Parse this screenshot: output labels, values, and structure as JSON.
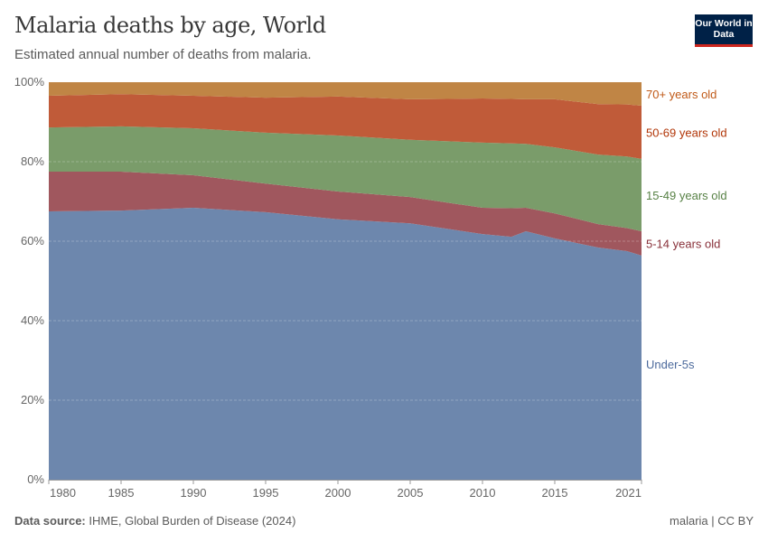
{
  "header": {
    "title": "Malaria deaths by age, World",
    "subtitle": "Estimated annual number of deaths from malaria.",
    "logo": "Our World in Data"
  },
  "footer": {
    "source_label": "Data source:",
    "source": "IHME, Global Burden of Disease (2024)",
    "license": "malaria | CC BY"
  },
  "chart_data": {
    "type": "area",
    "stacked": "percent",
    "title": "Malaria deaths by age, World",
    "xlabel": "",
    "ylabel": "",
    "ylim": [
      0,
      100
    ],
    "xlim": [
      1980,
      2021
    ],
    "x_ticks": [
      1980,
      1985,
      1990,
      1995,
      2000,
      2005,
      2010,
      2015,
      2021
    ],
    "y_ticks": [
      "0%",
      "20%",
      "40%",
      "60%",
      "80%",
      "100%"
    ],
    "grid": "horizontal dashed",
    "legend": "right, inline labels",
    "x": [
      1980,
      1985,
      1990,
      1995,
      2000,
      2005,
      2010,
      2012,
      2013,
      2015,
      2018,
      2020,
      2021
    ],
    "series": [
      {
        "name": "Under-5s",
        "color": "#6d87ad",
        "label_color": "#4c6a9c",
        "values": [
          67.5,
          67.7,
          68.4,
          67.3,
          65.5,
          64.5,
          61.8,
          61.1,
          62.5,
          60.7,
          58.4,
          57.5,
          56.4
        ]
      },
      {
        "name": "5-14 years old",
        "color": "#a0575e",
        "label_color": "#883039",
        "values": [
          10.0,
          9.8,
          8.2,
          7.2,
          7.0,
          6.6,
          6.6,
          7.2,
          5.9,
          6.3,
          5.9,
          5.8,
          6.1
        ]
      },
      {
        "name": "15-49 years old",
        "color": "#7a9c6a",
        "label_color": "#578145",
        "values": [
          11.1,
          11.4,
          11.8,
          12.8,
          14.1,
          14.4,
          16.4,
          16.3,
          16.1,
          16.6,
          17.5,
          18.0,
          18.2
        ]
      },
      {
        "name": "50-69 years old",
        "color": "#c05b39",
        "label_color": "#b13507",
        "values": [
          8.0,
          8.1,
          8.2,
          8.8,
          9.8,
          10.2,
          11.1,
          11.2,
          11.2,
          12.1,
          12.7,
          13.1,
          13.4
        ]
      },
      {
        "name": "70+ years old",
        "color": "#c08545",
        "label_color": "#c05917",
        "values": [
          3.4,
          3.0,
          3.4,
          3.9,
          3.6,
          4.3,
          4.1,
          4.2,
          4.3,
          4.3,
          5.5,
          5.6,
          5.9
        ]
      }
    ]
  }
}
